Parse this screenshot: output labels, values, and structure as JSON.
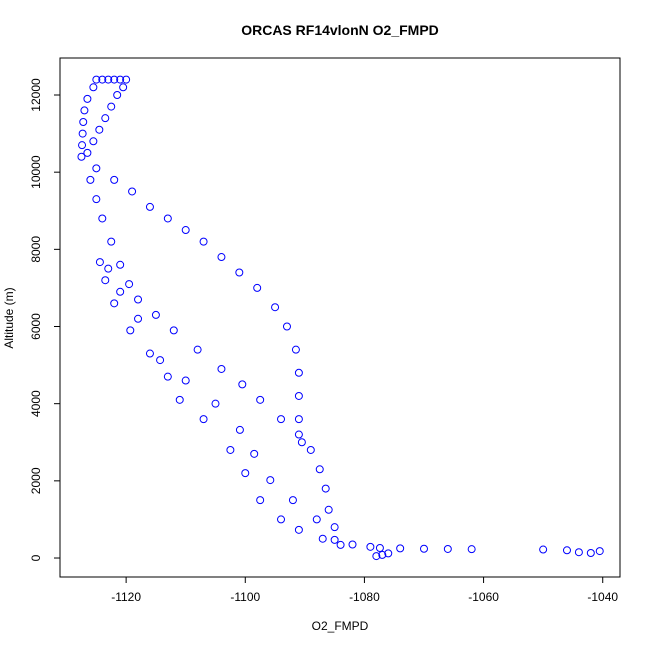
{
  "chart_data": {
    "type": "scatter",
    "title": "ORCAS RF14vlonN O2_FMPD",
    "x_label": "O2_FMPD",
    "y_label": "Altitude (m)",
    "color": "#0000ff",
    "x": [
      -1125,
      -1124,
      -1123,
      -1122,
      -1121,
      -1120,
      -1125.5,
      -1126.5,
      -1127,
      -1127.2,
      -1127.3,
      -1127.4,
      -1127.5,
      -1120.5,
      -1121.5,
      -1122.5,
      -1123.5,
      -1124.5,
      -1125.5,
      -1126.5,
      -1125,
      -1122,
      -1119,
      -1116,
      -1113,
      -1110,
      -1107,
      -1104,
      -1101,
      -1098,
      -1095,
      -1093,
      -1091.5,
      -1091,
      -1091,
      -1091,
      -1090.5,
      -1126,
      -1125,
      -1124,
      -1122.5,
      -1121,
      -1119.5,
      -1118,
      -1115,
      -1112,
      -1108,
      -1104,
      -1100.5,
      -1097.5,
      -1094,
      -1091,
      -1089,
      -1087.5,
      -1086.5,
      -1086,
      -1085,
      -1085,
      -1124.4,
      -1123.5,
      -1122,
      -1119.3,
      -1116,
      -1113,
      -1111,
      -1107,
      -1102.5,
      -1100,
      -1097.5,
      -1094,
      -1091,
      -1087,
      -1084,
      -1123,
      -1121,
      -1118,
      -1114.3,
      -1110,
      -1105,
      -1100.9,
      -1098.5,
      -1095.8,
      -1092,
      -1088,
      -1082,
      -1079,
      -1077.4,
      -1074,
      -1070,
      -1066,
      -1062,
      -1050,
      -1046,
      -1044,
      -1042,
      -1040.5,
      -1078,
      -1077,
      -1076
    ],
    "y": [
      12400,
      12400,
      12400,
      12400,
      12400,
      12400,
      12200,
      11900,
      11600,
      11300,
      11000,
      10700,
      10400,
      12200,
      12000,
      11700,
      11400,
      11100,
      10800,
      10500,
      10100,
      9800,
      9500,
      9100,
      8800,
      8500,
      8200,
      7800,
      7400,
      7000,
      6500,
      6000,
      5400,
      4800,
      4200,
      3600,
      3000,
      9800,
      9300,
      8800,
      8200,
      7600,
      7100,
      6700,
      6300,
      5900,
      5400,
      4900,
      4500,
      4100,
      3600,
      3200,
      2800,
      2300,
      1800,
      1250,
      800,
      470,
      7670,
      7200,
      6600,
      5900,
      5300,
      4700,
      4100,
      3600,
      2800,
      2200,
      1500,
      1000,
      730,
      500,
      340,
      7500,
      6900,
      6200,
      5130,
      4600,
      4000,
      3320,
      2700,
      2020,
      1500,
      1000,
      350,
      290,
      260,
      250,
      240,
      235,
      230,
      220,
      200,
      150,
      130,
      180,
      50,
      80,
      120
    ],
    "xlim": [
      -1131.1,
      -1037.1
    ],
    "ylim": [
      -492,
      12959
    ],
    "xticks": [
      -1120,
      -1100,
      -1080,
      -1060,
      -1040
    ],
    "yticks": [
      0,
      2000,
      4000,
      6000,
      8000,
      10000,
      12000
    ]
  }
}
